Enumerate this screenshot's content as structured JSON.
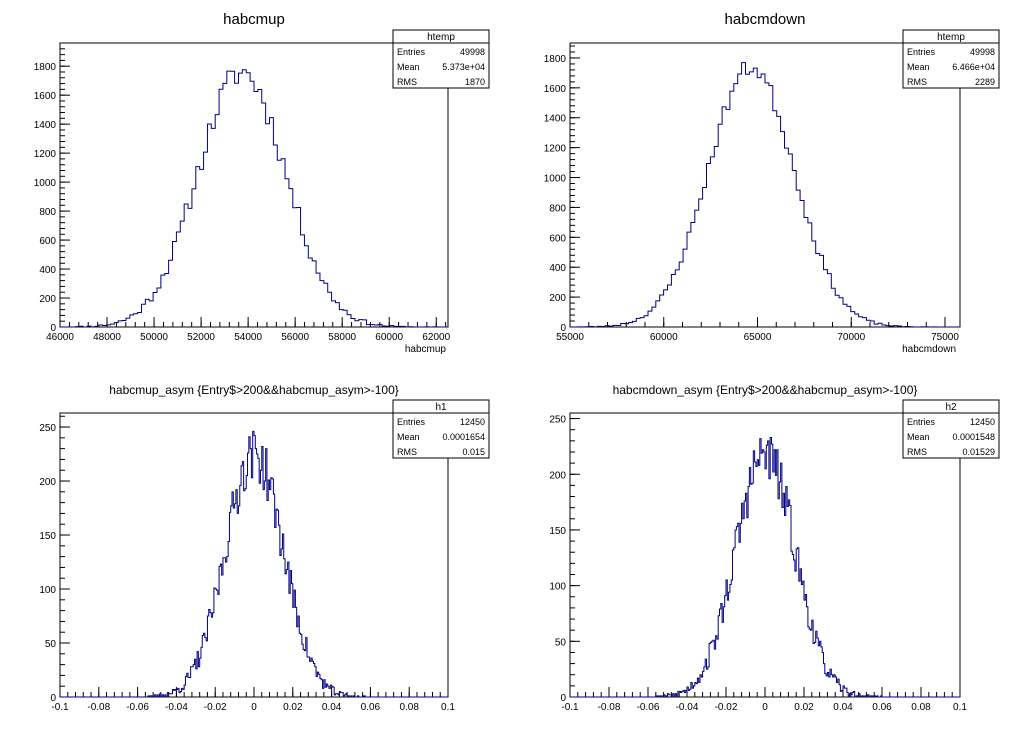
{
  "chart_data": [
    {
      "type": "histogram",
      "title": "habcmup",
      "xlabel": "habcmup",
      "ylabel": "",
      "xlim": [
        46000,
        62500
      ],
      "ylim": [
        0,
        1960
      ],
      "xticks": [
        46000,
        48000,
        50000,
        52000,
        54000,
        56000,
        58000,
        60000,
        62000
      ],
      "xtick_labels": [
        "46000",
        "48000",
        "50000",
        "52000",
        "54000",
        "56000",
        "58000",
        "60000",
        "62000"
      ],
      "yticks": [
        0,
        200,
        400,
        600,
        800,
        1000,
        1200,
        1400,
        1600,
        1800
      ],
      "ytick_labels": [
        "0",
        "200",
        "400",
        "600",
        "800",
        "1000",
        "1200",
        "1400",
        "1600",
        "1800"
      ],
      "curve": {
        "center": 53730,
        "sigma": 1870,
        "peak": 1760,
        "jitter": 95,
        "bins": 100,
        "seed": 11
      },
      "line_color": "#000080",
      "stats": {
        "name": "htemp",
        "rows": [
          [
            "Entries",
            "49998"
          ],
          [
            "Mean",
            "5.373e+04"
          ],
          [
            "RMS",
            "1870"
          ]
        ]
      }
    },
    {
      "type": "histogram",
      "title": "habcmdown",
      "xlabel": "habcmdown",
      "ylabel": "",
      "xlim": [
        55000,
        75800
      ],
      "ylim": [
        0,
        1900
      ],
      "xticks": [
        55000,
        60000,
        65000,
        70000,
        75000
      ],
      "xtick_labels": [
        "55000",
        "60000",
        "65000",
        "70000",
        "75000"
      ],
      "yticks": [
        0,
        200,
        400,
        600,
        800,
        1000,
        1200,
        1400,
        1600,
        1800
      ],
      "ytick_labels": [
        "0",
        "200",
        "400",
        "600",
        "800",
        "1000",
        "1200",
        "1400",
        "1600",
        "1800"
      ],
      "curve": {
        "center": 64660,
        "sigma": 2289,
        "peak": 1740,
        "jitter": 60,
        "bins": 100,
        "seed": 23
      },
      "line_color": "#000080",
      "stats": {
        "name": "htemp",
        "rows": [
          [
            "Entries",
            "49998"
          ],
          [
            "Mean",
            "6.466e+04"
          ],
          [
            "RMS",
            "2289"
          ]
        ]
      }
    },
    {
      "type": "histogram",
      "title": "habcmup_asym {Entry$>200&&habcmup_asym>-100}",
      "xlabel": "",
      "ylabel": "",
      "xlim": [
        -0.1,
        0.1
      ],
      "ylim": [
        0,
        263
      ],
      "xticks": [
        -0.1,
        -0.08,
        -0.06,
        -0.04,
        -0.02,
        0,
        0.02,
        0.04,
        0.06,
        0.08,
        0.1
      ],
      "xtick_labels": [
        "-0.1",
        "-0.08",
        "-0.06",
        "-0.04",
        "-0.02",
        "0",
        "0.02",
        "0.04",
        "0.06",
        "0.08",
        "0.1"
      ],
      "yticks": [
        0,
        50,
        100,
        150,
        200,
        250
      ],
      "ytick_labels": [
        "0",
        "50",
        "100",
        "150",
        "200",
        "250"
      ],
      "curve": {
        "center": 0.0001654,
        "sigma": 0.015,
        "peak": 225,
        "jitter": 24,
        "bins": 300,
        "seed": 37
      },
      "line_color": "#000080",
      "stats": {
        "name": "h1",
        "rows": [
          [
            "Entries",
            "12450"
          ],
          [
            "Mean",
            "0.0001654"
          ],
          [
            "RMS",
            "0.015"
          ]
        ]
      }
    },
    {
      "type": "histogram",
      "title": "habcmdown_asym {Entry$>200&&habcmup_asym>-100}",
      "xlabel": "",
      "ylabel": "",
      "xlim": [
        -0.1,
        0.1
      ],
      "ylim": [
        0,
        255
      ],
      "xticks": [
        -0.1,
        -0.08,
        -0.06,
        -0.04,
        -0.02,
        0,
        0.02,
        0.04,
        0.06,
        0.08,
        0.1
      ],
      "xtick_labels": [
        "-0.1",
        "-0.08",
        "-0.06",
        "-0.04",
        "-0.02",
        "0",
        "0.02",
        "0.04",
        "0.06",
        "0.08",
        "0.1"
      ],
      "yticks": [
        0,
        50,
        100,
        150,
        200,
        250
      ],
      "ytick_labels": [
        "0",
        "50",
        "100",
        "150",
        "200",
        "250"
      ],
      "curve": {
        "center": 0.0001548,
        "sigma": 0.01529,
        "peak": 218,
        "jitter": 24,
        "bins": 300,
        "seed": 53
      },
      "line_color": "#000080",
      "stats": {
        "name": "h2",
        "rows": [
          [
            "Entries",
            "12450"
          ],
          [
            "Mean",
            "0.0001548"
          ],
          [
            "RMS",
            "0.01529"
          ]
        ]
      }
    }
  ]
}
